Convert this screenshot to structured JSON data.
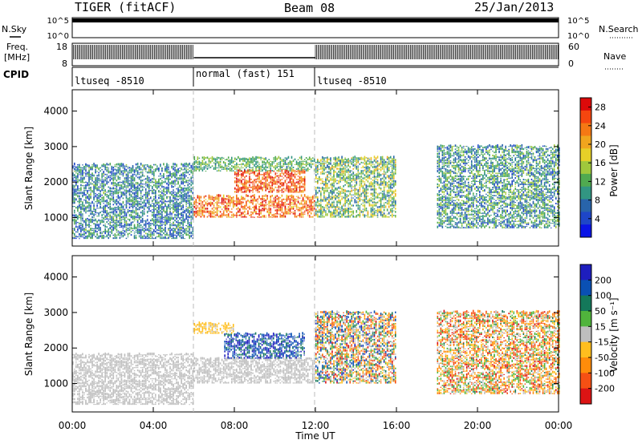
{
  "header": {
    "title": "TIGER (fitACF)",
    "beam": "Beam 08",
    "date": "25/Jan/2013"
  },
  "status_panels": {
    "nsky_label": "N.Sky",
    "nsky_ticks": [
      "10^5",
      "10^0"
    ],
    "nsearch_label": "N.Search",
    "nsearch_ticks": [
      "10^5",
      "10^0"
    ],
    "freq_label_line1": "Freq.",
    "freq_label_line2": "[MHz]",
    "freq_ticks": [
      "18",
      "8"
    ],
    "nave_label": "Nave",
    "nave_ticks": [
      "60",
      "0"
    ],
    "cpid_label": "CPID"
  },
  "cpid_segments": [
    {
      "label": "ltuseq -8510",
      "start_hour": 0,
      "end_hour": 6
    },
    {
      "label": "normal (fast) 151",
      "start_hour": 6,
      "end_hour": 12
    },
    {
      "label": "ltuseq -8510",
      "start_hour": 12,
      "end_hour": 24
    }
  ],
  "colors": {
    "power": [
      "#0a14e6",
      "#1e46c8",
      "#2864aa",
      "#329682",
      "#50aa50",
      "#a0c83c",
      "#e6d028",
      "#f0a51e",
      "#f57814",
      "#f5460f",
      "#dc0a0a"
    ],
    "velocity": [
      "#1e1ebe",
      "#0a50b4",
      "#14785a",
      "#50b43c",
      "#bebebe",
      "#ffbe1e",
      "#ff8c0a",
      "#f55014",
      "#dc1414"
    ]
  },
  "chart_data": [
    {
      "type": "heatmap",
      "name": "power",
      "ylabel": "Slant Range [km]",
      "xlabel": "Time UT",
      "xlim": [
        0,
        24
      ],
      "ylim": [
        200,
        4600
      ],
      "x_ticks": [
        "00:00",
        "04:00",
        "08:00",
        "12:00",
        "16:00",
        "20:00",
        "00:00"
      ],
      "y_ticks": [
        1000,
        2000,
        3000,
        4000
      ],
      "colorbar": {
        "label": "Power [dB]",
        "ticks": [
          "4",
          "8",
          "12",
          "16",
          "20",
          "24",
          "28"
        ],
        "range": [
          0,
          30
        ]
      },
      "regions": [
        {
          "t": [
            0,
            6
          ],
          "r": [
            400,
            2500
          ],
          "value_range": [
            3,
            14
          ]
        },
        {
          "t": [
            6,
            12
          ],
          "r": [
            2300,
            2700
          ],
          "value_range": [
            8,
            16
          ]
        },
        {
          "t": [
            6,
            12
          ],
          "r": [
            1000,
            1600
          ],
          "value_range": [
            18,
            30
          ]
        },
        {
          "t": [
            8,
            11.5
          ],
          "r": [
            1700,
            2300
          ],
          "value_range": [
            20,
            30
          ]
        },
        {
          "t": [
            12,
            16
          ],
          "r": [
            1000,
            2700
          ],
          "value_range": [
            6,
            20
          ]
        },
        {
          "t": [
            18,
            24
          ],
          "r": [
            700,
            3000
          ],
          "value_range": [
            4,
            16
          ]
        }
      ]
    },
    {
      "type": "heatmap",
      "name": "velocity",
      "ylabel": "Slant Range [km]",
      "xlabel": "Time UT",
      "xlim": [
        0,
        24
      ],
      "ylim": [
        200,
        4600
      ],
      "x_ticks": [
        "00:00",
        "04:00",
        "08:00",
        "12:00",
        "16:00",
        "20:00",
        "00:00"
      ],
      "y_ticks": [
        1000,
        2000,
        3000,
        4000
      ],
      "colorbar": {
        "label": "Velocity [m s⁻¹]",
        "ticks": [
          "200",
          "100",
          "50",
          "15",
          "-15",
          "-50",
          "-100",
          "-200"
        ],
        "range": [
          -250,
          250
        ]
      },
      "regions": [
        {
          "t": [
            0,
            6
          ],
          "r": [
            400,
            1800
          ],
          "value_range": [
            -20,
            20
          ]
        },
        {
          "t": [
            6,
            12
          ],
          "r": [
            1000,
            1700
          ],
          "value_range": [
            -10,
            10
          ]
        },
        {
          "t": [
            7.5,
            11.5
          ],
          "r": [
            1700,
            2400
          ],
          "value_range": [
            100,
            250
          ]
        },
        {
          "t": [
            6,
            8
          ],
          "r": [
            2400,
            2700
          ],
          "value_range": [
            -80,
            -20
          ]
        },
        {
          "t": [
            12,
            16
          ],
          "r": [
            1000,
            3000
          ],
          "value_range": [
            -220,
            220
          ]
        },
        {
          "t": [
            18,
            24
          ],
          "r": [
            700,
            3000
          ],
          "value_range": [
            -220,
            100
          ]
        }
      ]
    }
  ]
}
